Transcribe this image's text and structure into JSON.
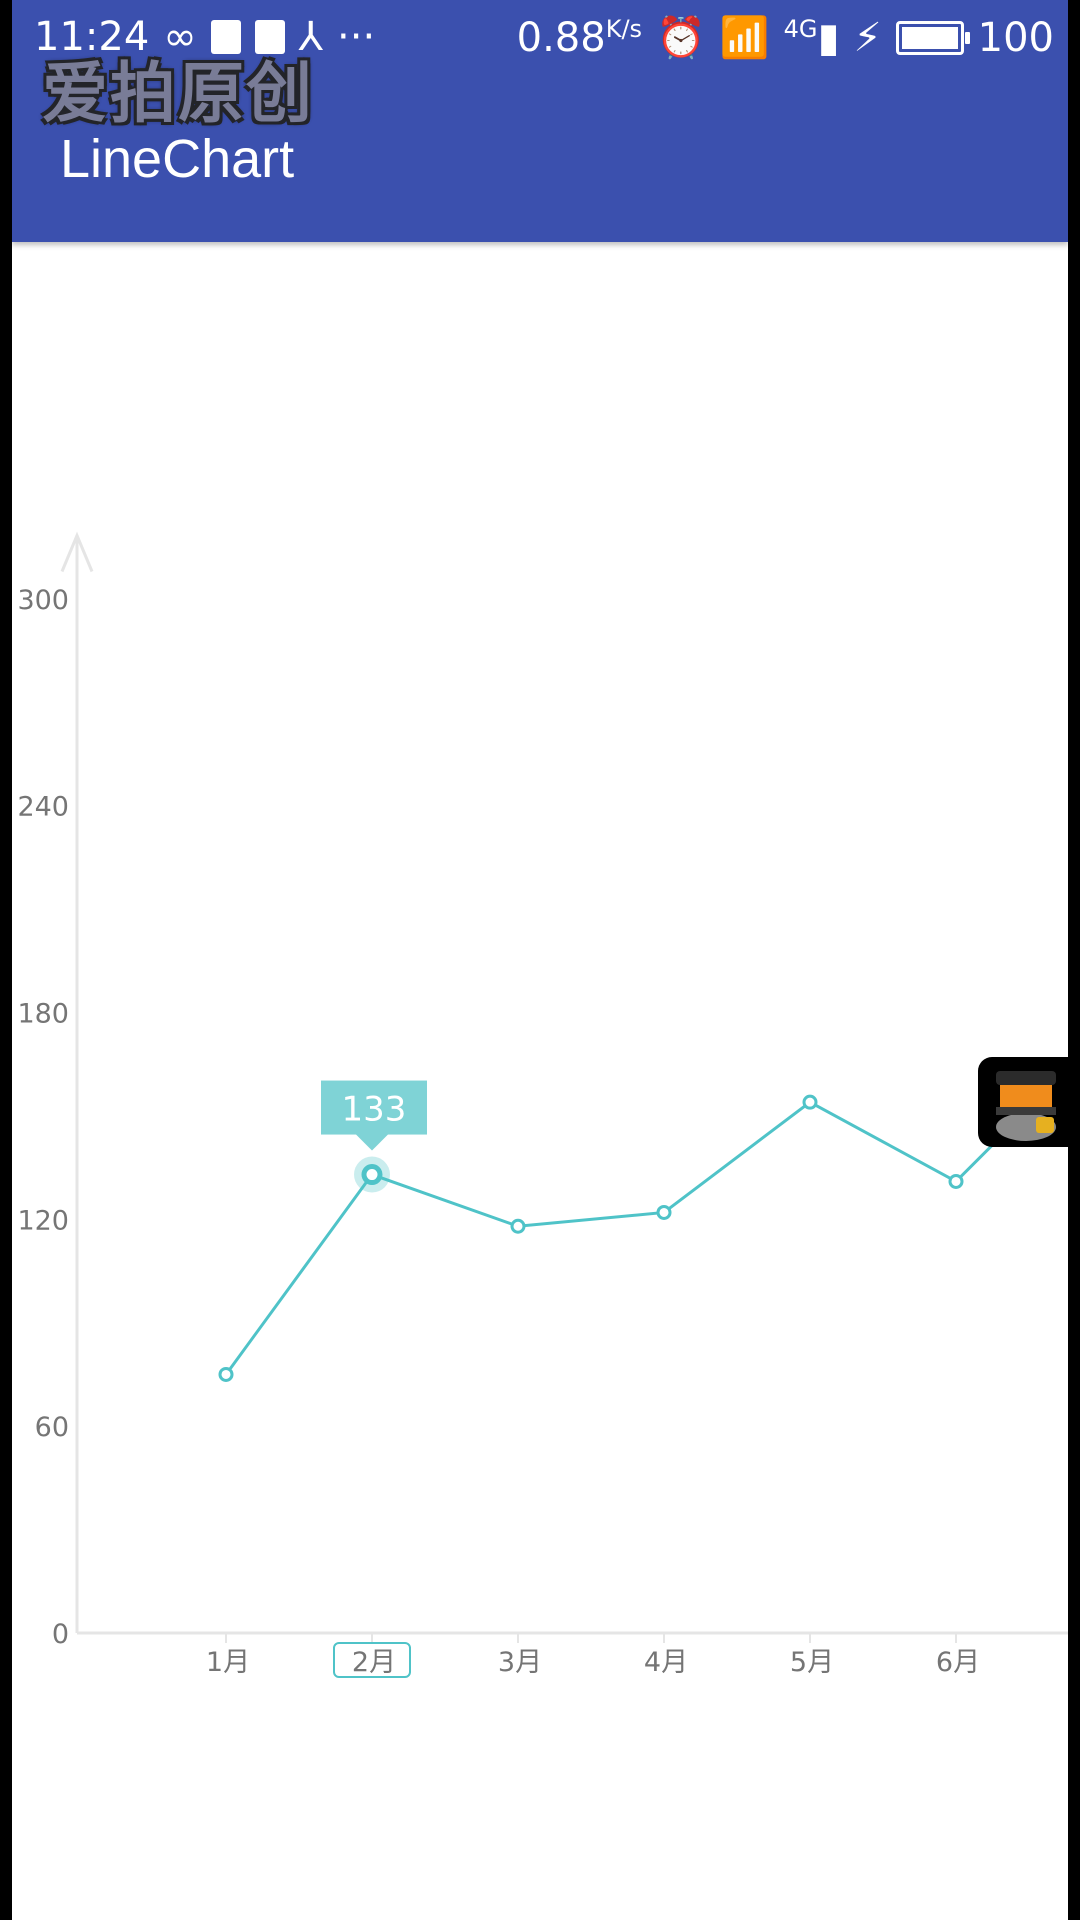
{
  "status_bar": {
    "time": "11:24",
    "net_speed": "0.88",
    "net_unit": "K/s",
    "signal_label": "4G",
    "battery": "100"
  },
  "watermark": "爱拍原创",
  "app_bar": {
    "title": "LineChart"
  },
  "chart_data": {
    "type": "line",
    "categories": [
      "1月",
      "2月",
      "3月",
      "4月",
      "5月",
      "6月"
    ],
    "series": [
      {
        "values": [
          75,
          133,
          118,
          122,
          154,
          131
        ],
        "color": "#4fc3c8"
      }
    ],
    "ylim": [
      0,
      330
    ],
    "yticks": [
      0,
      60,
      120,
      180,
      240,
      300
    ],
    "highlight": {
      "index": 1,
      "label": "133"
    },
    "grid": false,
    "title": "",
    "xlabel": "",
    "ylabel": ""
  },
  "colors": {
    "app_bar": "#3b50ae",
    "line": "#4fc3c8",
    "tooltip": "#7fd3d6",
    "axis": "#e5e5e5"
  },
  "icons": [
    "infinity-icon",
    "notification-icon",
    "image-icon",
    "share-icon",
    "more-icon",
    "alarm-icon",
    "wifi-icon",
    "signal-icon",
    "charging-icon",
    "battery-icon",
    "floating-assistant-icon"
  ]
}
